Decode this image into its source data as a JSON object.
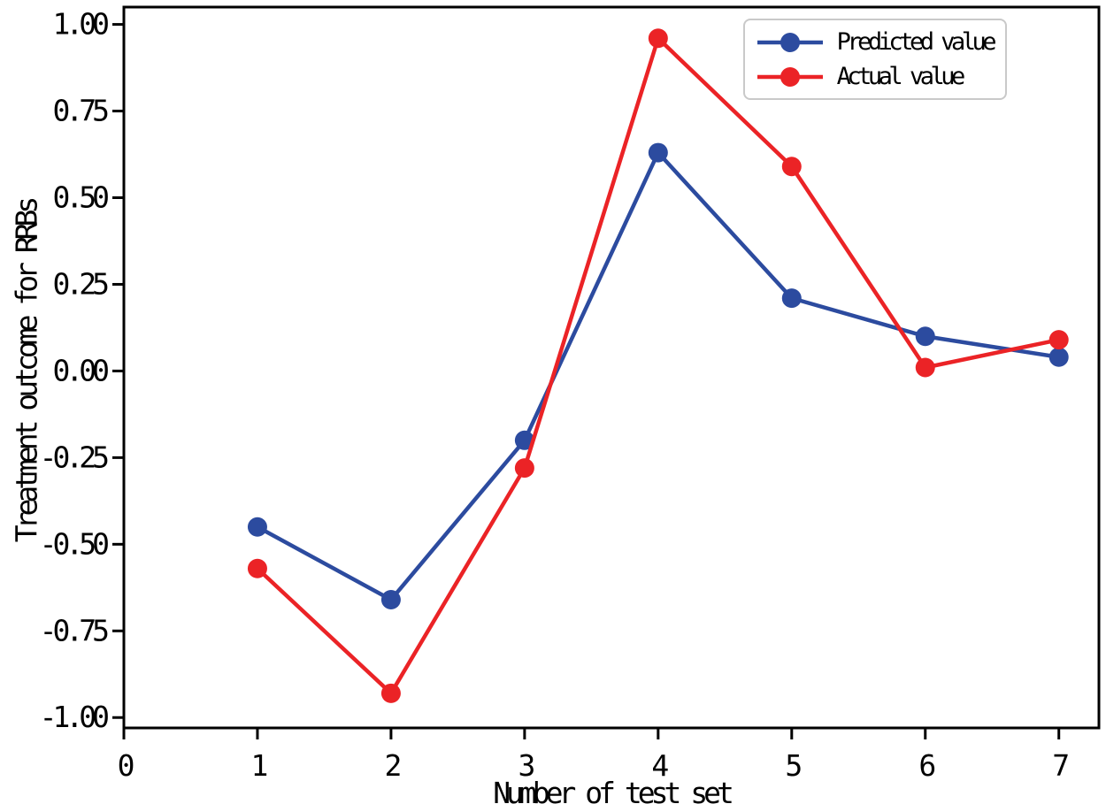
{
  "figure": {
    "background": "#ffffff",
    "spine_color": "#000000",
    "tick_color": "#000000",
    "legend_border_color": "#c9c9c9"
  },
  "chart_data": {
    "type": "line",
    "title": "",
    "xlabel": "Number of test set",
    "ylabel": "Treatment outcome for RRBs",
    "x": [
      1,
      2,
      3,
      4,
      5,
      6,
      7
    ],
    "series": [
      {
        "name": "Predicted value",
        "color": "#2c4b9f",
        "values": [
          -0.45,
          -0.66,
          -0.2,
          0.63,
          0.21,
          0.1,
          0.04
        ]
      },
      {
        "name": "Actual value",
        "color": "#eb2326",
        "values": [
          -0.57,
          -0.93,
          -0.28,
          0.96,
          0.59,
          0.01,
          0.09
        ]
      }
    ],
    "xlim": [
      0,
      7.3
    ],
    "ylim": [
      -1.03,
      1.05
    ],
    "x_ticks": [
      0,
      1,
      2,
      3,
      4,
      5,
      6,
      7
    ],
    "x_tick_labels": [
      "0",
      "1",
      "2",
      "3",
      "4",
      "5",
      "6",
      "7"
    ],
    "y_ticks": [
      1.0,
      0.75,
      0.5,
      0.25,
      0.0,
      -0.25,
      -0.5,
      -0.75,
      -1.0
    ],
    "y_tick_labels": [
      "1.00",
      "0.75",
      "0.50",
      "0.25",
      "0.00",
      "-0.25",
      "-0.50",
      "-0.75",
      "-1.00"
    ],
    "grid": false,
    "legend_position": "top-right",
    "marker": "circle",
    "marker_radius": 11,
    "line_width": 4.5
  }
}
